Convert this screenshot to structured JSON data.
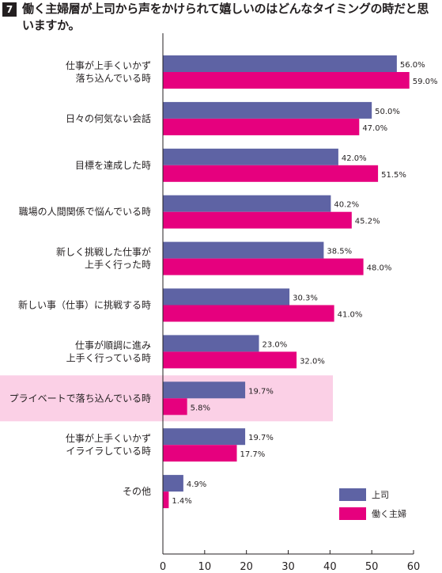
{
  "question": {
    "number": "7",
    "title": "働く主婦層が上司から声をかけられて嬉しいのはどんなタイミングの時だと思いますか。"
  },
  "chart_data": {
    "type": "bar",
    "orientation": "horizontal",
    "title": "働く主婦層が上司から声をかけられて嬉しいのはどんなタイミングの時だと思いますか。",
    "categories": [
      [
        "仕事が上手くいかず",
        "落ち込んでいる時"
      ],
      [
        "日々の何気ない会話"
      ],
      [
        "目標を達成した時"
      ],
      [
        "職場の人間関係で悩んでいる時"
      ],
      [
        "新しく挑戦した仕事が",
        "上手く行った時"
      ],
      [
        "新しい事（仕事）に挑戦する時"
      ],
      [
        "仕事が順調に進み",
        "上手く行っている時"
      ],
      [
        "プライベートで落ち込んでいる時"
      ],
      [
        "仕事が上手くいかず",
        "イライラしている時"
      ],
      [
        "その他"
      ]
    ],
    "series": [
      {
        "name": "上司",
        "color": "#5e63a4",
        "values": [
          56.0,
          50.0,
          42.0,
          40.2,
          38.5,
          30.3,
          23.0,
          19.7,
          19.7,
          4.9
        ],
        "labels": [
          "56.0%",
          "50.0%",
          "42.0%",
          "40.2%",
          "38.5%",
          "30.3%",
          "23.0%",
          "19.7%",
          "19.7%",
          "4.9%"
        ]
      },
      {
        "name": "働く主婦",
        "color": "#e6007e",
        "values": [
          59.0,
          47.0,
          51.5,
          45.2,
          48.0,
          41.0,
          32.0,
          5.8,
          17.7,
          1.4
        ],
        "labels": [
          "59.0%",
          "47.0%",
          "51.5%",
          "45.2%",
          "48.0%",
          "41.0%",
          "32.0%",
          "5.8%",
          "17.7%",
          "1.4%"
        ]
      }
    ],
    "xlim": [
      0,
      60
    ],
    "xticks": [
      "0",
      "10",
      "20",
      "30",
      "40",
      "50",
      "60"
    ],
    "highlight_category_index": 7,
    "highlight_color": "#fbd0e6",
    "legend_position": "bottom-right",
    "grid": false
  }
}
